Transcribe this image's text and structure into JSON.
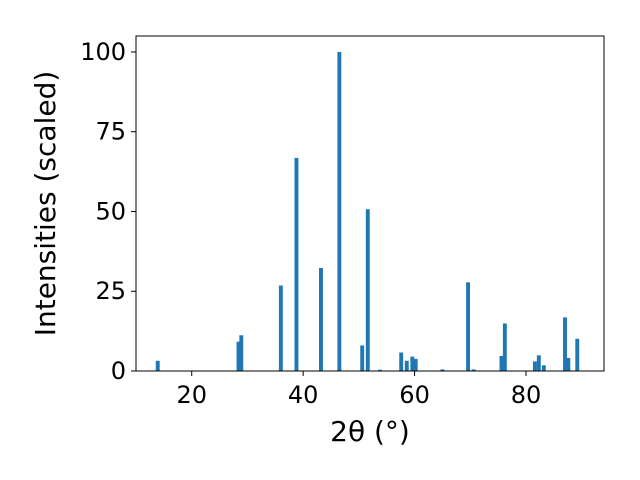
{
  "chart_data": {
    "type": "bar",
    "xlabel": "2θ (°)",
    "ylabel": "Intensities (scaled)",
    "xlim": [
      10,
      94
    ],
    "ylim": [
      0,
      105
    ],
    "xticks": [
      20,
      40,
      60,
      80
    ],
    "yticks": [
      0,
      25,
      50,
      75,
      100
    ],
    "bar_width": 0.7,
    "bar_color": "#1f77b4",
    "grid": false,
    "x": [
      13.9,
      28.4,
      28.9,
      36.0,
      38.8,
      43.2,
      46.5,
      50.6,
      51.6,
      53.8,
      57.6,
      58.6,
      59.6,
      60.2,
      65.0,
      69.6,
      70.6,
      75.6,
      76.2,
      81.6,
      82.3,
      83.2,
      87.0,
      87.6,
      89.2
    ],
    "values": [
      3.2,
      9.2,
      11.2,
      26.8,
      66.8,
      32.3,
      100.0,
      8.0,
      50.7,
      0.4,
      5.8,
      3.2,
      4.5,
      3.8,
      0.5,
      27.8,
      0.5,
      4.7,
      14.9,
      3.0,
      4.9,
      1.8,
      16.8,
      4.1,
      10.1
    ]
  }
}
